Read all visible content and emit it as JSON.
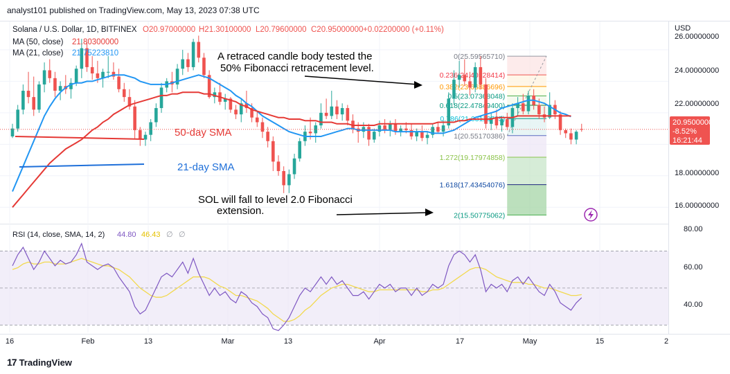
{
  "header": {
    "publisher_line": "analyst101 published on TradingView.com, May 13, 2023 07:38 UTC"
  },
  "legend": {
    "symbol": "Solana / U.S. Dollar, 1D, BITFINEX",
    "ohlc": [
      "O20.97000000",
      "H21.30100000",
      "L20.79600000",
      "C20.95000000",
      "+0.02200000 (+0.11%)"
    ],
    "ma50_label": "MA (50, close)",
    "ma50_value": "21.80300000",
    "ma21_label": "MA (21, close)",
    "ma21_value": "21.75223810"
  },
  "annotations": {
    "retrace_text_1": "A retraced candle body tested the",
    "retrace_text_2": "50% Fibonacci retracement level.",
    "sma50_label": "50-day SMA",
    "sma21_label": "21-day SMA",
    "fall_text_1": "SOL will fall to level 2.0 Fibonacci",
    "fall_text_2": "extension."
  },
  "price_axis": {
    "currency": "USD",
    "ticks": [
      "26.00000000",
      "24.00000000",
      "22.00000000",
      "20.00000000",
      "18.00000000",
      "16.00000000"
    ],
    "last_price": "20.95000000",
    "last_change": "-8.52%",
    "countdown": "16:21:44"
  },
  "time_axis": {
    "ticks": [
      "16",
      "Feb",
      "13",
      "Mar",
      "13",
      "Apr",
      "17",
      "May",
      "15",
      "2"
    ]
  },
  "rsi": {
    "label": "RSI (14, close, SMA, 14, 2)",
    "value": "44.80",
    "sma_value": "46.43",
    "ticks": [
      "80.00",
      "60.00",
      "40.00"
    ]
  },
  "fib_labels": [
    "0(25.59565710)",
    "0.236(24.40528414)",
    "0.382(23.66886696)",
    "0.5(23.07368048)",
    "0.618(22.47849400)",
    "0.786(21.63116735)",
    "1(20.55170386)",
    "1.272(19.17974858)",
    "1.618(17.43454076)",
    "2(15.50775062)"
  ],
  "logo_text": "TradingView",
  "colors": {
    "up": "#26a69a",
    "down": "#ef5350",
    "ma50": "#e53935",
    "ma21": "#2196f3",
    "rsi": "#7e57c2",
    "rsi_sma": "#f2d94e",
    "rsi_band": "#ede7f6",
    "price_tag": "#ef5350",
    "grid": "#f0f3fa",
    "text": "#131722"
  },
  "chart_data": {
    "type": "candlestick",
    "title": "Solana / U.S. Dollar, 1D, BITFINEX",
    "ylim": [
      15.0,
      27.8
    ],
    "rsi_ylim": [
      26,
      84
    ],
    "candles": [
      [
        20.5,
        21.3,
        20.4,
        21.0
      ],
      [
        21.0,
        22.5,
        20.8,
        22.2
      ],
      [
        22.2,
        23.8,
        21.9,
        23.4
      ],
      [
        23.4,
        24.6,
        22.6,
        23.0
      ],
      [
        23.0,
        24.3,
        21.8,
        22.2
      ],
      [
        22.2,
        24.0,
        22.0,
        23.8
      ],
      [
        23.8,
        25.2,
        23.3,
        24.7
      ],
      [
        24.7,
        25.4,
        23.9,
        24.2
      ],
      [
        24.2,
        24.6,
        23.0,
        23.4
      ],
      [
        23.4,
        24.0,
        22.8,
        23.7
      ],
      [
        23.7,
        24.4,
        23.2,
        23.5
      ],
      [
        23.5,
        24.2,
        22.9,
        23.9
      ],
      [
        23.9,
        25.0,
        23.7,
        24.8
      ],
      [
        24.8,
        26.7,
        24.2,
        26.1
      ],
      [
        26.1,
        26.5,
        24.6,
        24.9
      ],
      [
        24.9,
        25.6,
        24.1,
        24.5
      ],
      [
        24.5,
        25.3,
        23.9,
        24.2
      ],
      [
        24.2,
        24.8,
        23.6,
        24.6
      ],
      [
        24.6,
        25.6,
        24.2,
        24.6
      ],
      [
        24.6,
        25.2,
        24.1,
        24.3
      ],
      [
        24.3,
        24.8,
        23.3,
        23.5
      ],
      [
        23.5,
        23.9,
        22.7,
        23.0
      ],
      [
        23.0,
        23.5,
        22.2,
        22.4
      ],
      [
        22.4,
        22.8,
        20.3,
        20.9
      ],
      [
        20.9,
        21.1,
        19.9,
        20.3
      ],
      [
        20.3,
        20.8,
        19.9,
        20.6
      ],
      [
        20.6,
        21.6,
        20.2,
        21.4
      ],
      [
        21.4,
        22.6,
        21.1,
        22.3
      ],
      [
        22.3,
        23.9,
        22.0,
        23.6
      ],
      [
        23.6,
        24.2,
        23.3,
        24.0
      ],
      [
        24.0,
        24.6,
        23.3,
        23.8
      ],
      [
        23.8,
        25.1,
        23.5,
        24.8
      ],
      [
        24.8,
        26.0,
        24.4,
        25.4
      ],
      [
        25.4,
        25.8,
        24.6,
        24.9
      ],
      [
        24.9,
        26.7,
        24.7,
        26.5
      ],
      [
        26.5,
        26.9,
        25.2,
        25.5
      ],
      [
        25.5,
        25.8,
        24.2,
        24.4
      ],
      [
        24.4,
        24.7,
        22.9,
        23.0
      ],
      [
        23.0,
        23.6,
        22.6,
        23.3
      ],
      [
        23.3,
        23.9,
        22.5,
        22.7
      ],
      [
        22.7,
        23.2,
        22.2,
        22.9
      ],
      [
        22.9,
        23.0,
        22.0,
        22.2
      ],
      [
        22.2,
        22.5,
        21.6,
        21.9
      ],
      [
        21.9,
        22.9,
        21.4,
        22.6
      ],
      [
        22.6,
        23.4,
        22.0,
        22.3
      ],
      [
        22.3,
        22.6,
        21.4,
        21.7
      ],
      [
        21.7,
        22.1,
        21.1,
        21.4
      ],
      [
        21.4,
        21.7,
        20.4,
        20.8
      ],
      [
        20.8,
        21.1,
        19.8,
        20.2
      ],
      [
        20.2,
        20.5,
        18.3,
        18.9
      ],
      [
        18.9,
        19.3,
        18.0,
        18.3
      ],
      [
        18.3,
        18.6,
        16.9,
        17.4
      ],
      [
        17.4,
        18.4,
        16.9,
        18.1
      ],
      [
        18.1,
        19.4,
        17.8,
        19.1
      ],
      [
        19.1,
        20.4,
        18.9,
        20.2
      ],
      [
        20.2,
        21.2,
        19.9,
        20.8
      ],
      [
        20.8,
        21.7,
        20.3,
        20.7
      ],
      [
        20.7,
        21.4,
        20.1,
        21.2
      ],
      [
        21.2,
        22.6,
        21.0,
        22.0
      ],
      [
        22.0,
        22.9,
        21.6,
        21.8
      ],
      [
        21.8,
        23.4,
        21.6,
        22.4
      ],
      [
        22.4,
        22.8,
        21.6,
        21.9
      ],
      [
        21.9,
        22.6,
        21.5,
        22.3
      ],
      [
        22.3,
        22.5,
        21.2,
        21.5
      ],
      [
        21.5,
        21.9,
        20.7,
        21.0
      ],
      [
        21.0,
        21.4,
        20.1,
        20.8
      ],
      [
        20.8,
        21.4,
        20.4,
        21.1
      ],
      [
        21.1,
        21.3,
        19.9,
        20.3
      ],
      [
        20.3,
        21.0,
        20.1,
        20.8
      ],
      [
        20.8,
        21.5,
        20.5,
        21.2
      ],
      [
        21.2,
        21.6,
        20.7,
        20.9
      ],
      [
        20.9,
        21.5,
        20.5,
        21.3
      ],
      [
        21.3,
        21.6,
        20.6,
        20.8
      ],
      [
        20.8,
        21.2,
        20.5,
        21.0
      ],
      [
        21.0,
        21.4,
        20.7,
        20.9
      ],
      [
        20.9,
        21.3,
        20.3,
        20.5
      ],
      [
        20.5,
        21.0,
        20.2,
        20.8
      ],
      [
        20.8,
        21.2,
        20.2,
        20.4
      ],
      [
        20.4,
        20.8,
        20.0,
        20.6
      ],
      [
        20.6,
        21.3,
        20.4,
        21.1
      ],
      [
        21.1,
        21.4,
        20.7,
        20.8
      ],
      [
        20.8,
        21.5,
        20.5,
        21.2
      ],
      [
        21.2,
        23.3,
        21.0,
        22.9
      ],
      [
        22.9,
        24.7,
        22.5,
        24.1
      ],
      [
        24.1,
        25.3,
        23.6,
        24.4
      ],
      [
        24.4,
        25.4,
        23.7,
        24.0
      ],
      [
        24.0,
        24.6,
        23.1,
        23.6
      ],
      [
        23.6,
        25.2,
        23.3,
        24.9
      ],
      [
        24.9,
        25.6,
        23.5,
        23.8
      ],
      [
        23.8,
        24.2,
        21.0,
        21.3
      ],
      [
        21.3,
        22.0,
        20.9,
        21.7
      ],
      [
        21.7,
        22.2,
        21.0,
        21.2
      ],
      [
        21.2,
        21.8,
        20.8,
        21.6
      ],
      [
        21.6,
        22.0,
        20.9,
        21.1
      ],
      [
        21.1,
        22.6,
        20.7,
        22.3
      ],
      [
        22.3,
        23.0,
        21.8,
        22.6
      ],
      [
        22.6,
        23.2,
        21.9,
        22.1
      ],
      [
        22.1,
        23.4,
        21.9,
        23.1
      ],
      [
        23.1,
        23.5,
        22.2,
        22.5
      ],
      [
        22.5,
        22.9,
        21.6,
        21.9
      ],
      [
        21.9,
        22.4,
        21.4,
        21.7
      ],
      [
        21.7,
        23.3,
        21.6,
        22.5
      ],
      [
        22.5,
        22.8,
        21.6,
        21.9
      ],
      [
        21.9,
        22.1,
        20.6,
        20.9
      ],
      [
        20.9,
        21.0,
        20.4,
        20.7
      ],
      [
        20.7,
        21.0,
        20.0,
        20.3
      ],
      [
        20.3,
        20.9,
        20.0,
        20.8
      ],
      [
        20.97,
        21.301,
        20.796,
        20.95
      ]
    ],
    "ma50": [
      16.0,
      16.4,
      16.8,
      17.2,
      17.6,
      18.0,
      18.4,
      18.8,
      19.1,
      19.4,
      19.7,
      19.9,
      20.1,
      20.3,
      20.6,
      20.9,
      21.1,
      21.4,
      21.6,
      21.9,
      22.1,
      22.3,
      22.5,
      22.6,
      22.7,
      22.8,
      22.9,
      23.0,
      23.1,
      23.1,
      23.2,
      23.2,
      23.3,
      23.3,
      23.3,
      23.3,
      23.2,
      23.2,
      23.1,
      23.0,
      22.9,
      22.8,
      22.7,
      22.5,
      22.4,
      22.2,
      22.1,
      22.0,
      21.9,
      21.8,
      21.7,
      21.7,
      21.6,
      21.6,
      21.6,
      21.5,
      21.5,
      21.5,
      21.4,
      21.4,
      21.4,
      21.3,
      21.3,
      21.3,
      21.2,
      21.2,
      21.2,
      21.2,
      21.2,
      21.3,
      21.3,
      21.3,
      21.3,
      21.3,
      21.3,
      21.3,
      21.3,
      21.3,
      21.3,
      21.3,
      21.4,
      21.4,
      21.4,
      21.4,
      21.5,
      21.5,
      21.6,
      21.6,
      21.6,
      21.6,
      21.6,
      21.7,
      21.7,
      21.7,
      21.7,
      21.8,
      21.8,
      21.8,
      21.8,
      21.8,
      21.8,
      21.8,
      21.8,
      21.8,
      21.8,
      21.8
    ],
    "ma21": [
      17.0,
      17.8,
      18.6,
      19.4,
      20.2,
      21.0,
      21.8,
      22.4,
      22.9,
      23.3,
      23.6,
      23.8,
      23.9,
      23.9,
      24.0,
      24.0,
      24.1,
      24.2,
      24.3,
      24.4,
      24.4,
      24.4,
      24.3,
      24.2,
      24.0,
      23.9,
      23.8,
      23.8,
      23.8,
      23.8,
      23.9,
      24.0,
      24.1,
      24.2,
      24.3,
      24.4,
      24.3,
      24.2,
      24.0,
      23.8,
      23.6,
      23.4,
      23.1,
      22.9,
      22.6,
      22.4,
      22.1,
      21.8,
      21.6,
      21.4,
      21.2,
      21.0,
      20.8,
      20.7,
      20.6,
      20.5,
      20.5,
      20.5,
      20.5,
      20.6,
      20.7,
      20.8,
      20.9,
      21.0,
      21.0,
      20.9,
      20.9,
      20.9,
      20.9,
      20.9,
      20.9,
      20.9,
      20.8,
      20.8,
      20.8,
      20.8,
      20.8,
      20.8,
      20.8,
      20.7,
      20.7,
      20.7,
      20.8,
      20.9,
      21.1,
      21.3,
      21.5,
      21.7,
      21.8,
      21.9,
      22.0,
      22.1,
      22.3,
      22.4,
      22.5,
      22.6,
      22.7,
      22.8,
      22.8,
      22.7,
      22.6,
      22.4,
      22.2,
      22.0,
      21.9,
      21.75
    ],
    "rsi": [
      62,
      68,
      72,
      66,
      60,
      64,
      70,
      66,
      62,
      65,
      63,
      64,
      68,
      74,
      64,
      62,
      60,
      62,
      63,
      61,
      56,
      52,
      48,
      40,
      36,
      38,
      44,
      50,
      56,
      58,
      56,
      60,
      64,
      58,
      66,
      58,
      52,
      46,
      50,
      46,
      48,
      44,
      42,
      48,
      46,
      42,
      40,
      36,
      34,
      28,
      27,
      30,
      34,
      40,
      46,
      50,
      48,
      52,
      56,
      52,
      56,
      52,
      54,
      50,
      46,
      46,
      48,
      44,
      48,
      52,
      50,
      52,
      48,
      50,
      50,
      46,
      50,
      46,
      48,
      52,
      50,
      52,
      62,
      68,
      70,
      68,
      64,
      68,
      60,
      48,
      52,
      50,
      52,
      48,
      54,
      56,
      52,
      56,
      52,
      48,
      46,
      52,
      48,
      42,
      40,
      38,
      42,
      44.8
    ],
    "rsi_sma": [
      60,
      61,
      63,
      64,
      63,
      63,
      64,
      64,
      63,
      63,
      63,
      64,
      65,
      66,
      65,
      64,
      63,
      62,
      62,
      61,
      60,
      58,
      56,
      53,
      50,
      48,
      46,
      45,
      45,
      46,
      48,
      50,
      52,
      54,
      56,
      56,
      56,
      55,
      53,
      51,
      50,
      48,
      46,
      46,
      45,
      44,
      43,
      41,
      39,
      36,
      34,
      32,
      32,
      33,
      35,
      38,
      40,
      43,
      46,
      48,
      50,
      51,
      52,
      52,
      51,
      50,
      49,
      48,
      48,
      49,
      49,
      49,
      49,
      49,
      49,
      49,
      49,
      48,
      48,
      49,
      49,
      50,
      52,
      54,
      56,
      58,
      60,
      61,
      61,
      60,
      58,
      56,
      55,
      54,
      53,
      53,
      53,
      52,
      52,
      51,
      50,
      50,
      49,
      48,
      47,
      46,
      46,
      46.43
    ],
    "fib_levels": [
      25.5956571,
      24.40528414,
      23.66886696,
      23.07368048,
      22.478494,
      21.63116735,
      20.55170386,
      19.17974858,
      17.43454076,
      15.50775062
    ]
  }
}
